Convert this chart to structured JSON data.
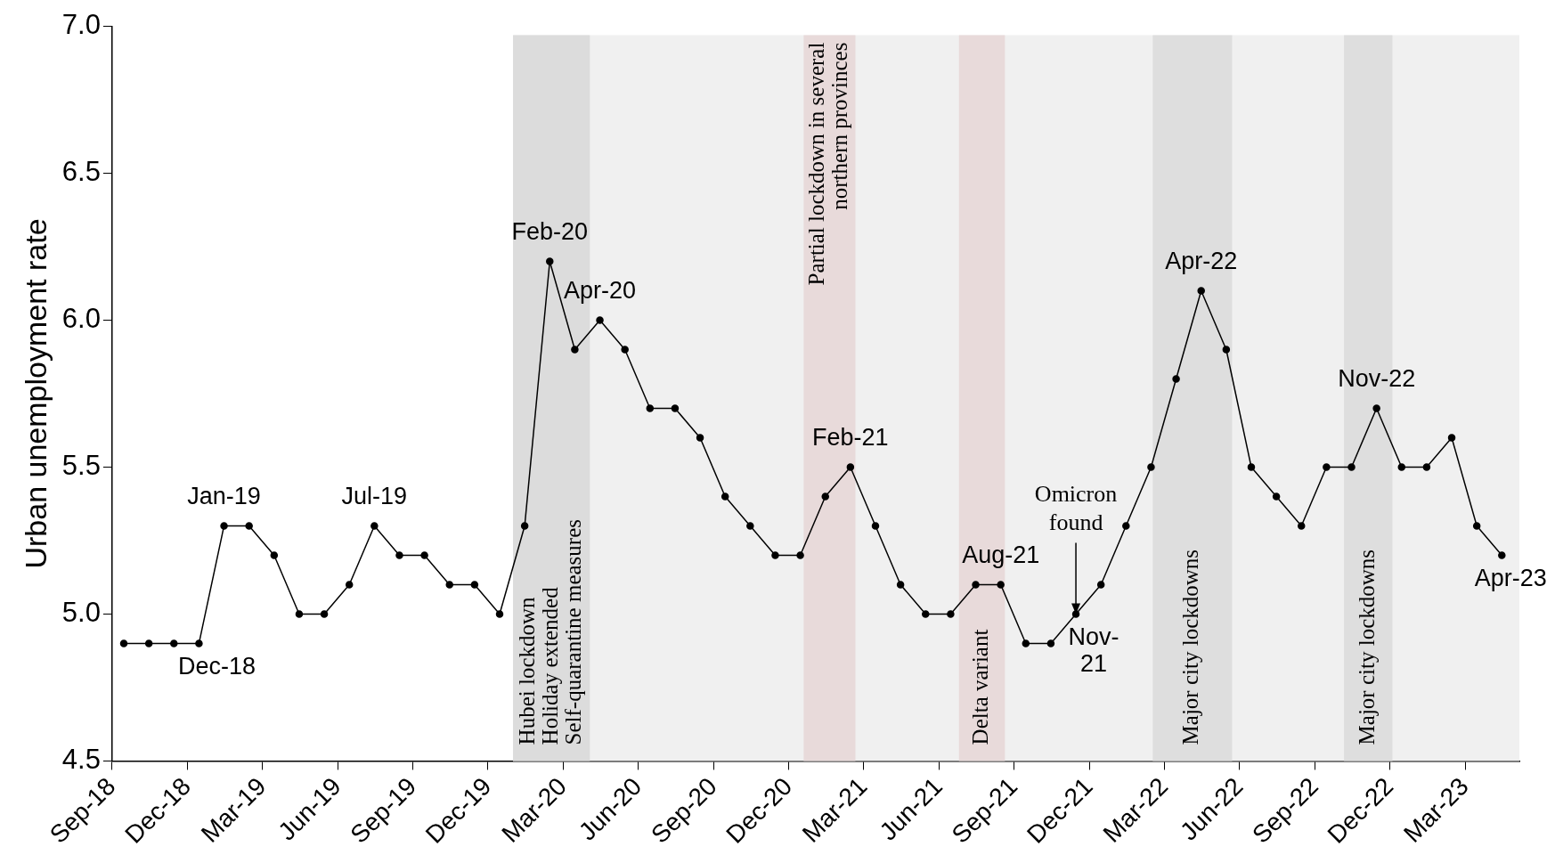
{
  "chart_data": {
    "type": "line",
    "ylabel": "Urban unemployment rate",
    "x": [
      "2018-09-15",
      "2018-10-15",
      "2018-11-15",
      "2018-12-15",
      "2019-01-15",
      "2019-02-15",
      "2019-03-15",
      "2019-04-15",
      "2019-05-15",
      "2019-06-15",
      "2019-07-15",
      "2019-08-15",
      "2019-09-15",
      "2019-10-15",
      "2019-11-15",
      "2019-12-15",
      "2020-01-15",
      "2020-02-15",
      "2020-03-15",
      "2020-04-15",
      "2020-05-15",
      "2020-06-15",
      "2020-07-15",
      "2020-08-15",
      "2020-09-15",
      "2020-10-15",
      "2020-11-15",
      "2020-12-15",
      "2021-01-15",
      "2021-02-15",
      "2021-03-15",
      "2021-04-15",
      "2021-05-15",
      "2021-06-15",
      "2021-07-15",
      "2021-08-15",
      "2021-09-15",
      "2021-10-15",
      "2021-11-15",
      "2021-12-15",
      "2022-01-15",
      "2022-02-15",
      "2022-03-15",
      "2022-04-15",
      "2022-05-15",
      "2022-06-15",
      "2022-07-15",
      "2022-08-15",
      "2022-09-15",
      "2022-10-15",
      "2022-11-15",
      "2022-12-15",
      "2023-01-15",
      "2023-02-15",
      "2023-03-15",
      "2023-04-15"
    ],
    "series": [
      {
        "color": "#000000",
        "values": [
          4.9,
          4.9,
          4.9,
          4.9,
          5.3,
          5.3,
          5.2,
          5.0,
          5.0,
          5.1,
          5.3,
          5.2,
          5.2,
          5.1,
          5.1,
          5.0,
          5.3,
          6.2,
          5.9,
          6.0,
          5.9,
          5.7,
          5.7,
          5.6,
          5.4,
          5.3,
          5.2,
          5.2,
          5.4,
          5.5,
          5.3,
          5.1,
          5.0,
          5.0,
          5.1,
          5.1,
          4.9,
          4.9,
          5.0,
          5.1,
          5.3,
          5.5,
          5.8,
          6.1,
          5.9,
          5.5,
          5.4,
          5.3,
          5.5,
          5.5,
          5.7,
          5.5,
          5.5,
          5.6,
          5.3,
          5.2
        ]
      }
    ],
    "xlim": [
      "2018-09-01",
      "2023-05-06"
    ],
    "xticks": [
      {
        "value": "2018-09-01",
        "label": "Sep-18"
      },
      {
        "value": "2018-12-01",
        "label": "Dec-18"
      },
      {
        "value": "2019-03-01",
        "label": "Mar-19"
      },
      {
        "value": "2019-06-01",
        "label": "Jun-19"
      },
      {
        "value": "2019-09-01",
        "label": "Sep-19"
      },
      {
        "value": "2019-12-01",
        "label": "Dec-19"
      },
      {
        "value": "2020-03-01",
        "label": "Mar-20"
      },
      {
        "value": "2020-06-01",
        "label": "Jun-20"
      },
      {
        "value": "2020-09-01",
        "label": "Sep-20"
      },
      {
        "value": "2020-12-01",
        "label": "Dec-20"
      },
      {
        "value": "2021-03-01",
        "label": "Mar-21"
      },
      {
        "value": "2021-06-01",
        "label": "Jun-21"
      },
      {
        "value": "2021-09-01",
        "label": "Sep-21"
      },
      {
        "value": "2021-12-01",
        "label": "Dec-21"
      },
      {
        "value": "2022-03-01",
        "label": "Mar-22"
      },
      {
        "value": "2022-06-01",
        "label": "Jun-22"
      },
      {
        "value": "2022-09-01",
        "label": "Sep-22"
      },
      {
        "value": "2022-12-01",
        "label": "Dec-22"
      },
      {
        "value": "2023-03-01",
        "label": "Mar-23"
      }
    ],
    "ylim": [
      4.5,
      7.0
    ],
    "yticks": [
      {
        "value": 4.5,
        "label": "4.5"
      },
      {
        "value": 5,
        "label": "5.0"
      },
      {
        "value": 5.5,
        "label": "5.5"
      },
      {
        "value": 6,
        "label": "6.0"
      },
      {
        "value": 6.5,
        "label": "6.5"
      },
      {
        "value": 7,
        "label": "7.0"
      }
    ],
    "grid": false,
    "legend": false,
    "marker": "circle",
    "line_style": "solid",
    "bands": [
      {
        "axis": "x",
        "from": "2020-01-01",
        "to": "2023-05-06",
        "color": "#f0f0f0"
      },
      {
        "axis": "x",
        "from": "2020-01-01",
        "to": "2020-04-03",
        "label": "Hubei lockdown\nHoliday extended\nSelf-quarantine measures",
        "color": "#dcdcdc"
      },
      {
        "axis": "x",
        "from": "2020-12-19",
        "to": "2021-02-21",
        "label": "Partial lockdown in several\nnorthern provinces",
        "color": "#e8dada"
      },
      {
        "axis": "x",
        "from": "2021-06-25",
        "to": "2021-08-20",
        "label": "Delta variant",
        "color": "#e8dada"
      },
      {
        "axis": "x",
        "from": "2022-02-17",
        "to": "2022-05-22",
        "label": "Major city lockdowns",
        "color": "#dedede"
      },
      {
        "axis": "x",
        "from": "2022-10-06",
        "to": "2022-12-04",
        "label": "Major city lockdowns",
        "color": "#dedede"
      }
    ],
    "annotations": [
      {
        "text": "Dec-18",
        "x": "2018-12-15",
        "y": 4.9
      },
      {
        "text": "Jan-19",
        "x": "2019-01-15",
        "y": 5.3
      },
      {
        "text": "Jul-19",
        "x": "2019-07-15",
        "y": 5.3
      },
      {
        "text": "Feb-20",
        "x": "2020-02-15",
        "y": 6.2
      },
      {
        "text": "Apr-20",
        "x": "2020-04-15",
        "y": 6.0
      },
      {
        "text": "Feb-21",
        "x": "2021-02-15",
        "y": 5.5
      },
      {
        "text": "Aug-21",
        "x": "2021-08-15",
        "y": 5.1
      },
      {
        "text": "Nov-\n21",
        "x": "2021-11-15",
        "y": 5.0
      },
      {
        "text": "Omicron\nfound",
        "x": "2021-11-15",
        "y": 5.0
      },
      {
        "text": "Apr-22",
        "x": "2022-04-15",
        "y": 6.1
      },
      {
        "text": "Nov-22",
        "x": "2022-11-15",
        "y": 5.7
      },
      {
        "text": "Apr-23",
        "x": "2023-04-15",
        "y": 5.2
      }
    ]
  }
}
